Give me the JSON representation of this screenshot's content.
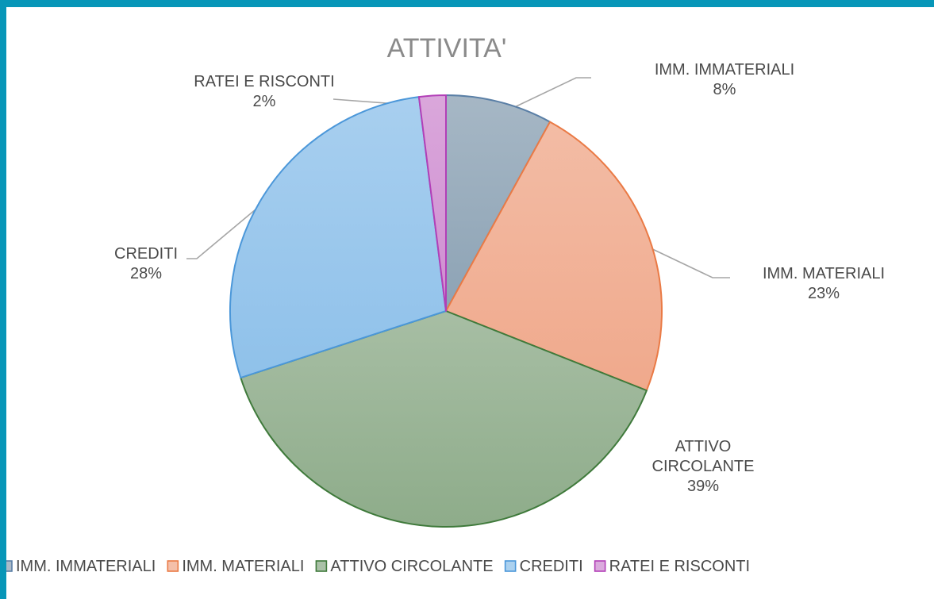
{
  "chart_data": {
    "type": "pie",
    "title": "ATTIVITA'",
    "categories": [
      "IMM. IMMATERIALI",
      "IMM. MATERIALI",
      "ATTIVO CIRCOLANTE",
      "CREDITI",
      "RATEI E RISCONTI"
    ],
    "values": [
      8,
      23,
      39,
      28,
      2
    ],
    "value_labels": [
      "8%",
      "23%",
      "39%",
      "28%",
      "2%"
    ],
    "label_lines": [
      [
        "IMM. IMMATERIALI"
      ],
      [
        "IMM. MATERIALI"
      ],
      [
        "ATTIVO",
        "CIRCOLANTE"
      ],
      [
        "CREDITI"
      ],
      [
        "RATEI E RISCONTI"
      ]
    ],
    "colors": [
      "#8da3b5",
      "#f0a98c",
      "#8eac8a",
      "#8fc1ea",
      "#cf8ed1"
    ],
    "edge_colors": [
      "#5a7fa6",
      "#ea7a45",
      "#3f7a3b",
      "#4b97d9",
      "#b23fb7"
    ],
    "legend_position": "bottom",
    "slice_labels": "outside with leader lines"
  }
}
